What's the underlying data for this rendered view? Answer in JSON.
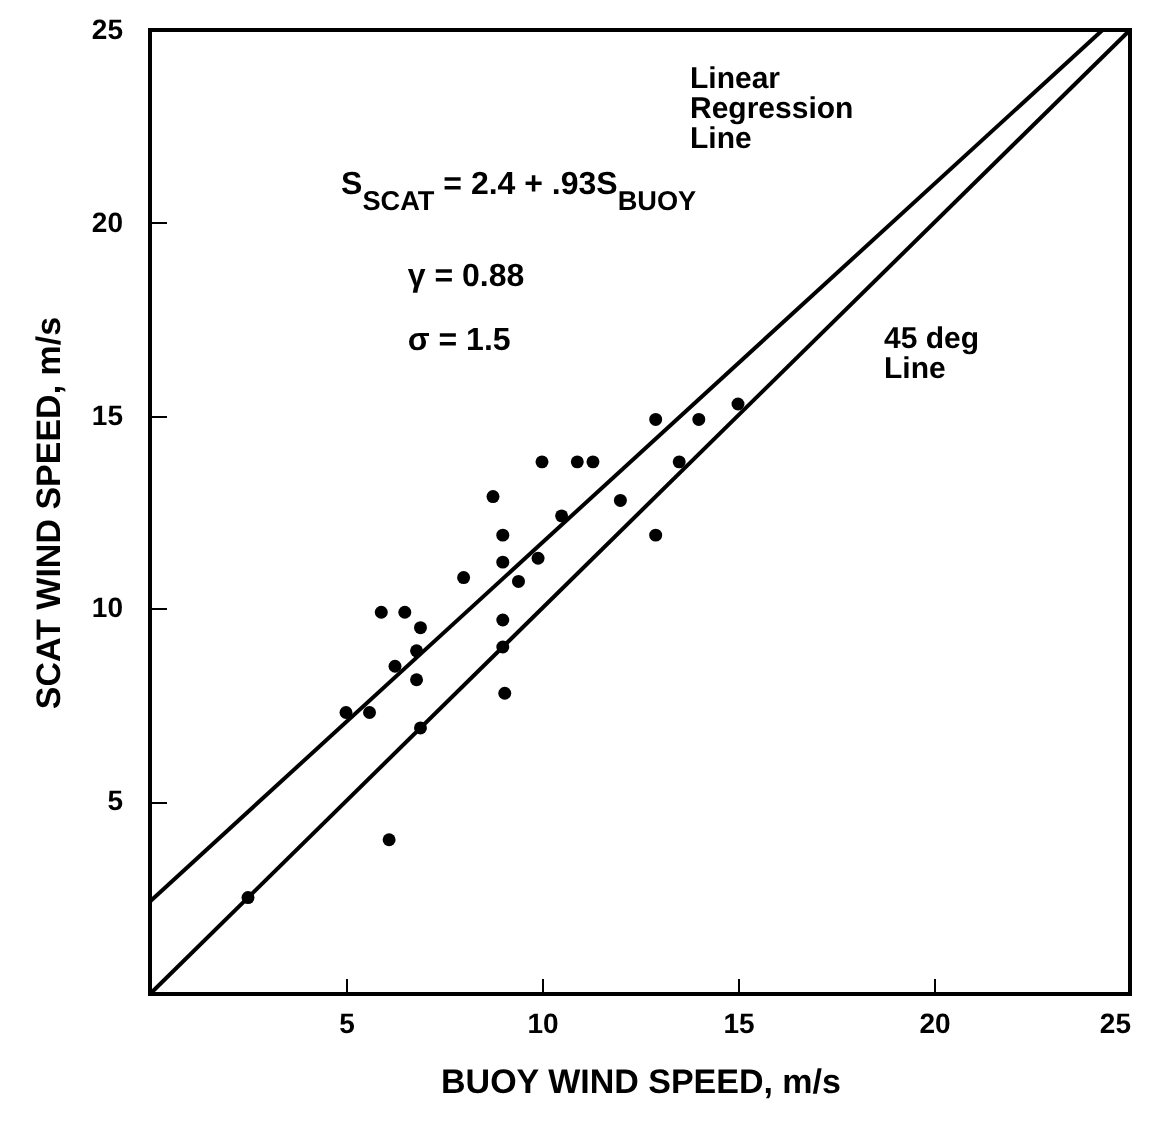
{
  "chart_data": {
    "type": "scatter",
    "xlabel": "BUOY WIND SPEED, m/s",
    "ylabel": "SCAT WIND SPEED, m/s",
    "xlim": [
      0,
      25
    ],
    "ylim": [
      0,
      25
    ],
    "xticks": [
      5,
      10,
      15,
      20,
      25
    ],
    "yticks": [
      5,
      10,
      15,
      20,
      25
    ],
    "grid": false,
    "annotations": [
      "S$_{SCAT}$ = 2.4 + .93S$_{BUOY}$",
      "γ = 0.88",
      "σ = 1.5",
      "Linear\nRegression\nLine",
      "45 deg\nLine"
    ],
    "series": [
      {
        "marker": "circle",
        "color": "#000000",
        "x": [
          12.9,
          14.0,
          15.0,
          10.0,
          10.9,
          11.3,
          13.5,
          8.75,
          12.0,
          10.5,
          9.0,
          12.9,
          9.0,
          9.9,
          8.0,
          9.4,
          5.9,
          6.5,
          6.9,
          9.0,
          6.8,
          6.25,
          9.0,
          6.8,
          9.05,
          5.0,
          5.6,
          6.9,
          6.1,
          2.5
        ],
        "values": [
          14.9,
          14.9,
          15.3,
          13.8,
          13.8,
          13.8,
          13.8,
          12.9,
          12.8,
          12.4,
          11.9,
          11.9,
          11.2,
          11.3,
          10.8,
          10.7,
          9.9,
          9.9,
          9.5,
          9.7,
          8.9,
          8.5,
          9.0,
          8.15,
          7.8,
          7.3,
          7.3,
          6.9,
          4.0,
          2.5
        ]
      },
      {
        "type": "line",
        "color": "#000000",
        "line_style": "solid",
        "x": [
          0,
          24.3
        ],
        "values": [
          2.4,
          25
        ]
      },
      {
        "type": "line",
        "color": "#000000",
        "line_style": "solid",
        "x": [
          0,
          25
        ],
        "values": [
          0,
          25
        ]
      }
    ]
  }
}
